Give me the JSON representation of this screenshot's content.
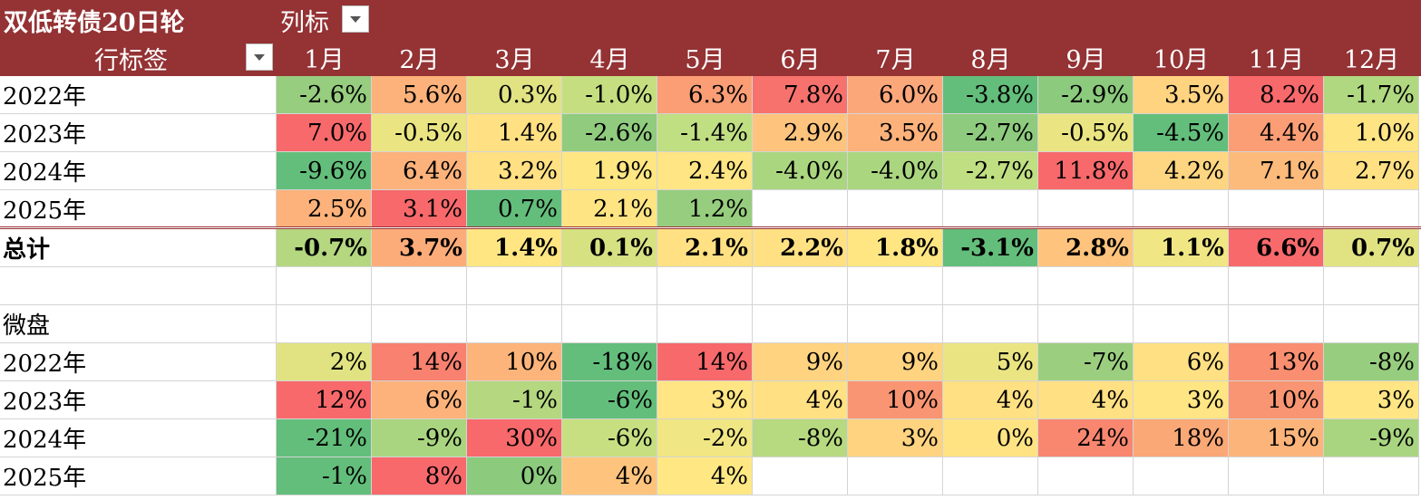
{
  "header": {
    "title": "双低转债20日轮",
    "column_label": "列标",
    "row_label": "行标签",
    "months": [
      "1月",
      "2月",
      "3月",
      "4月",
      "5月",
      "6月",
      "7月",
      "8月",
      "9月",
      "10月",
      "11月",
      "12月"
    ]
  },
  "section1": {
    "rows": [
      {
        "label": "2022年",
        "values": [
          "-2.6%",
          "5.6%",
          "0.3%",
          "-1.0%",
          "6.3%",
          "7.8%",
          "6.0%",
          "-3.8%",
          "-2.9%",
          "3.5%",
          "8.2%",
          "-1.7%"
        ],
        "colors": [
          "#97cd7e",
          "#fcb27a",
          "#e1e383",
          "#c5df80",
          "#fb9e75",
          "#f8726d",
          "#fca77a",
          "#63be7b",
          "#8cca7d",
          "#ffd380",
          "#f8696b",
          "#b0d880"
        ]
      },
      {
        "label": "2023年",
        "values": [
          "7.0%",
          "-0.5%",
          "1.4%",
          "-2.6%",
          "-1.4%",
          "2.9%",
          "3.5%",
          "-2.7%",
          "-0.5%",
          "-4.5%",
          "4.4%",
          "1.0%"
        ],
        "colors": [
          "#f8696b",
          "#eae582",
          "#ffe083",
          "#90cb7e",
          "#c0de82",
          "#fec47d",
          "#fcb27a",
          "#8ecb7e",
          "#eae582",
          "#63be7b",
          "#fb9e75",
          "#ffe483"
        ]
      },
      {
        "label": "2024年",
        "values": [
          "-9.6%",
          "6.4%",
          "3.2%",
          "1.9%",
          "2.4%",
          "-4.0%",
          "-4.0%",
          "-2.7%",
          "11.8%",
          "4.2%",
          "7.1%",
          "2.7%"
        ],
        "colors": [
          "#63be7b",
          "#fcb27a",
          "#ffe083",
          "#fee683",
          "#ffe583",
          "#abd680",
          "#abd680",
          "#c0de82",
          "#f8696b",
          "#fed580",
          "#fcba7b",
          "#ffe083"
        ]
      },
      {
        "label": "2025年",
        "values": [
          "2.5%",
          "3.1%",
          "0.7%",
          "2.1%",
          "1.2%",
          "",
          "",
          "",
          "",
          "",
          "",
          ""
        ],
        "colors": [
          "#fcb27a",
          "#f8696b",
          "#63be7b",
          "#ffe483",
          "#97cd7e",
          "",
          "",
          "",
          "",
          "",
          "",
          ""
        ]
      }
    ],
    "total": {
      "label": "总计",
      "values": [
        "-0.7%",
        "3.7%",
        "1.4%",
        "0.1%",
        "2.1%",
        "2.2%",
        "1.8%",
        "-3.1%",
        "2.8%",
        "1.1%",
        "6.6%",
        "0.7%"
      ],
      "colors": [
        "#b4d780",
        "#fcac79",
        "#ffe683",
        "#d6e182",
        "#ffe183",
        "#ffe183",
        "#ffe683",
        "#63be7b",
        "#fec47d",
        "#f0e684",
        "#f8696b",
        "#e1e383"
      ]
    }
  },
  "section2": {
    "label": "微盘",
    "rows": [
      {
        "label": "2022年",
        "values": [
          "2%",
          "14%",
          "10%",
          "-18%",
          "14%",
          "9%",
          "9%",
          "5%",
          "-7%",
          "6%",
          "13%",
          "-8%"
        ],
        "colors": [
          "#e1e383",
          "#f8816f",
          "#fdb47a",
          "#63be7b",
          "#f8696b",
          "#ffd380",
          "#ffd380",
          "#eae582",
          "#9bcf7f",
          "#ffe083",
          "#f98e71",
          "#97cd7e"
        ]
      },
      {
        "label": "2023年",
        "values": [
          "12%",
          "6%",
          "-1%",
          "-6%",
          "3%",
          "4%",
          "10%",
          "4%",
          "4%",
          "3%",
          "10%",
          "3%"
        ],
        "colors": [
          "#f8696b",
          "#fcb27a",
          "#b4d780",
          "#63be7b",
          "#ffe583",
          "#ffe083",
          "#f99572",
          "#ffe083",
          "#ffe083",
          "#ffe583",
          "#f99572",
          "#ffe583"
        ]
      },
      {
        "label": "2024年",
        "values": [
          "-21%",
          "-9%",
          "30%",
          "-6%",
          "-2%",
          "-8%",
          "3%",
          "0%",
          "24%",
          "18%",
          "15%",
          "-9%"
        ],
        "colors": [
          "#63be7b",
          "#a9d580",
          "#f8696b",
          "#c7df81",
          "#f0e684",
          "#b7d980",
          "#ffd380",
          "#ffe383",
          "#f98770",
          "#fba877",
          "#fcb47a",
          "#a9d580"
        ]
      },
      {
        "label": "2025年",
        "values": [
          "-1%",
          "8%",
          "0%",
          "4%",
          "4%",
          "",
          "",
          "",
          "",
          "",
          "",
          ""
        ],
        "colors": [
          "#63be7b",
          "#f8696b",
          "#8cca7d",
          "#fec47d",
          "#ffe884",
          "",
          "",
          "",
          "",
          "",
          "",
          ""
        ]
      }
    ]
  }
}
